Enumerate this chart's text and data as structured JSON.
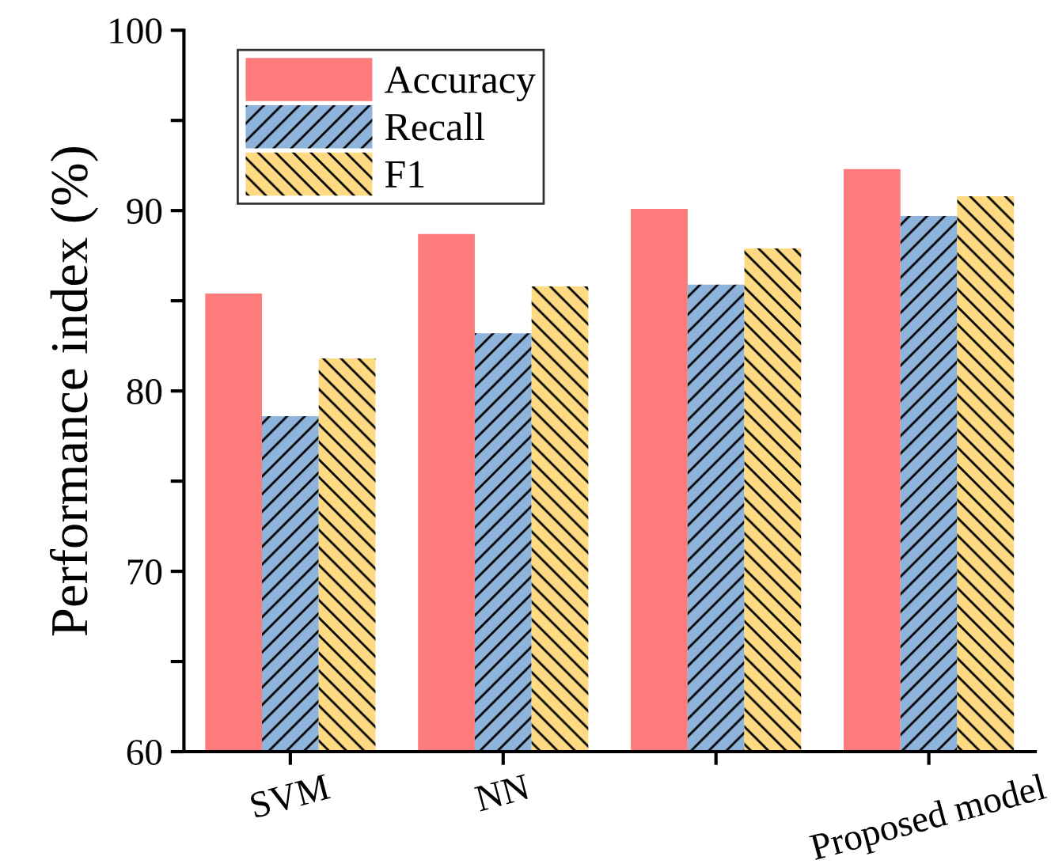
{
  "chart_data": {
    "type": "bar",
    "ylabel": "Performance index (%)",
    "categories": [
      "SVM",
      "NN",
      null,
      "Proposed model"
    ],
    "series": [
      {
        "name": "Accuracy",
        "color": "#fe7b7b",
        "values": [
          85.4,
          88.7,
          90.1,
          92.3
        ]
      },
      {
        "name": "Recall",
        "color": "#8fb4dc",
        "values": [
          78.6,
          83.2,
          85.9,
          89.7
        ]
      },
      {
        "name": "F1",
        "color": "#fedb82",
        "values": [
          81.8,
          85.8,
          87.9,
          90.8
        ]
      }
    ],
    "ylim": [
      60,
      100
    ],
    "yticks": [
      60,
      {
        "value": 65,
        "label": null
      },
      70,
      {
        "value": 75,
        "label": null
      },
      80,
      {
        "value": 85,
        "label": null
      },
      90,
      {
        "value": 95,
        "label": null
      },
      100
    ],
    "grid": false,
    "legend": "top left"
  }
}
